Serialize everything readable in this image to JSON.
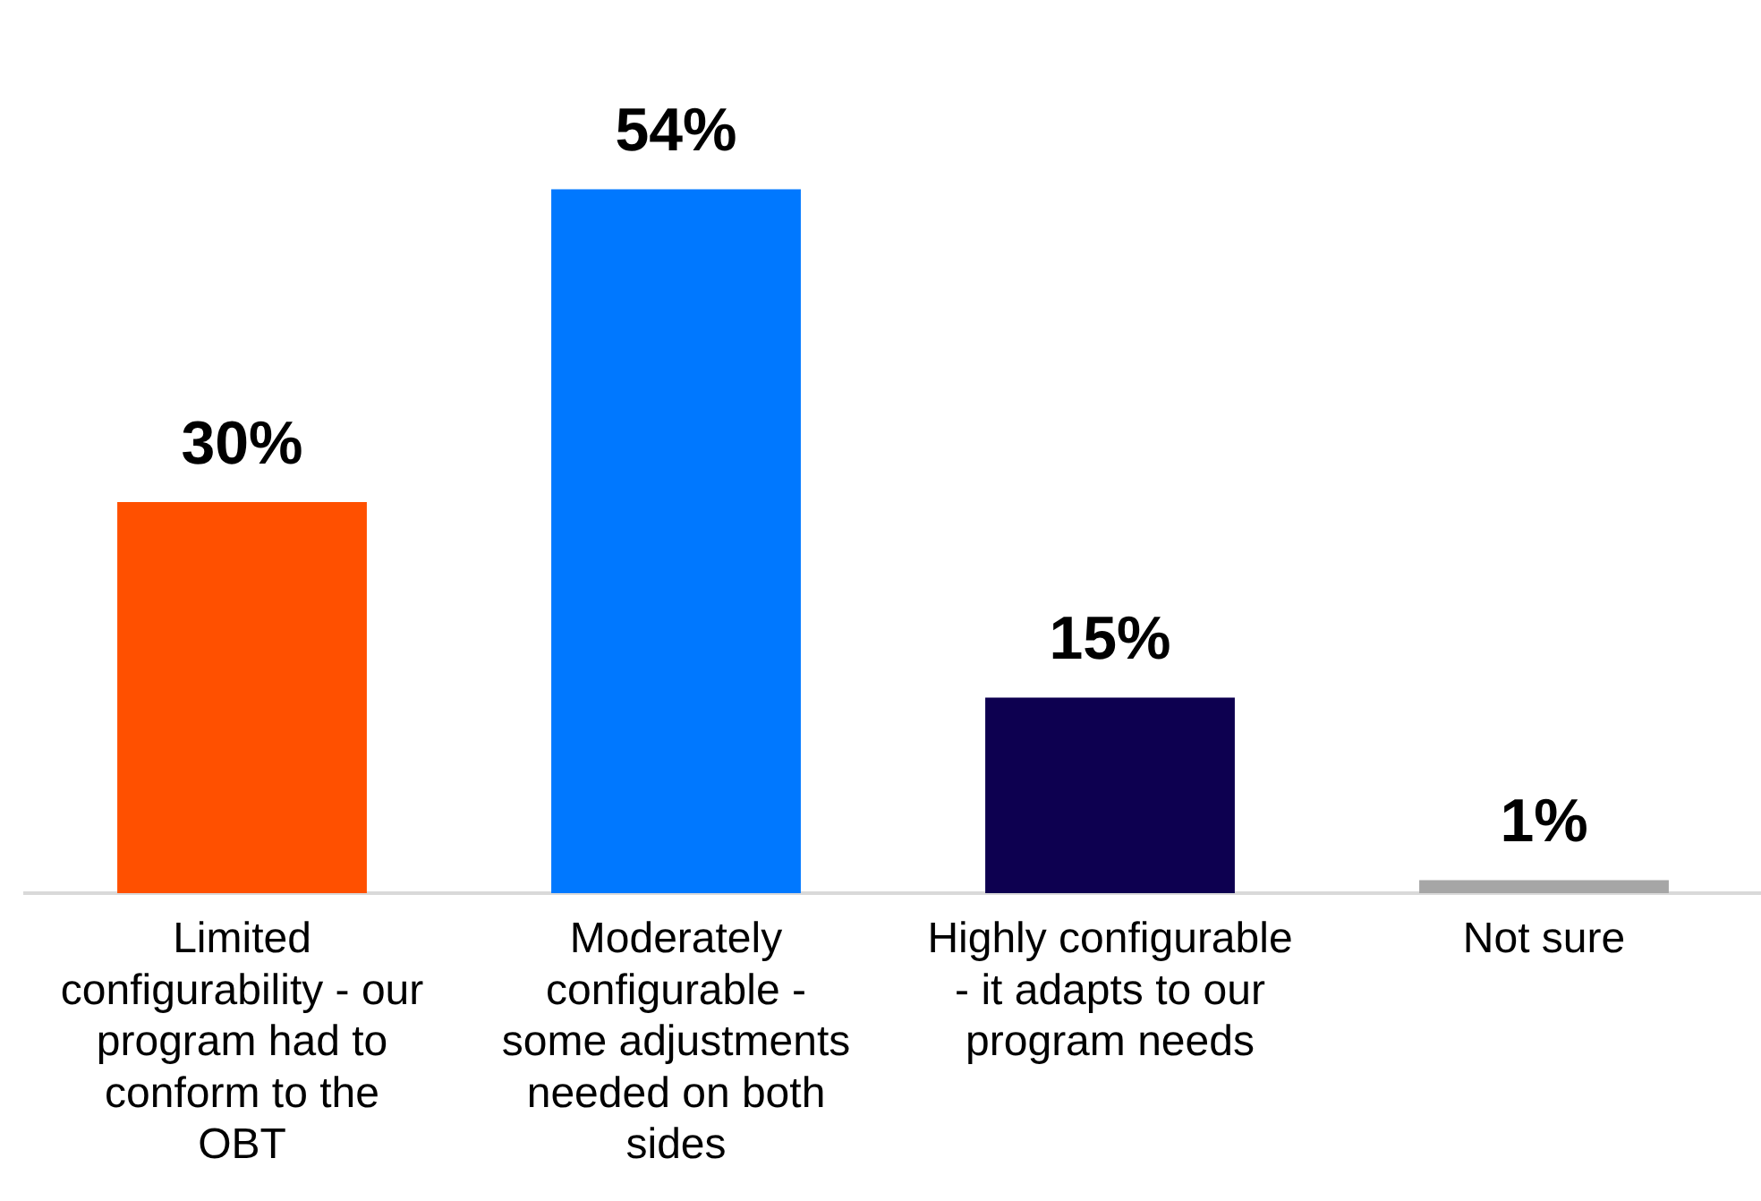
{
  "chart_data": {
    "type": "bar",
    "categories": [
      "Limited configurability - our program had to conform to the OBT",
      "Moderately configurable - some adjustments needed on both sides",
      "Highly configurable - it adapts to our program needs",
      "Not sure"
    ],
    "values": [
      30,
      54,
      15,
      1
    ],
    "colors": [
      "#ff5000",
      "#0078ff",
      "#0d0050",
      "#a6a6a6"
    ],
    "value_labels": [
      "30%",
      "54%",
      "15%",
      "1%"
    ],
    "grid": false,
    "legend": false
  }
}
